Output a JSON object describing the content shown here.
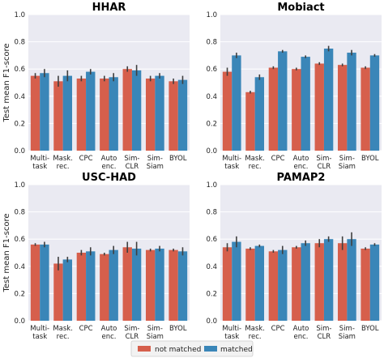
{
  "figure": {
    "ylabel": "Test mean F1-score",
    "colors": {
      "not_matched": "#d65f4c",
      "matched": "#3a86b8",
      "panel_bg": "#eaeaf2",
      "grid": "#ffffff",
      "error": "#3f3f3f"
    },
    "legend": {
      "entries": [
        "not matched",
        "matched"
      ],
      "placement": "bottom-center"
    }
  },
  "chart_data": [
    {
      "type": "bar",
      "title": "HHAR",
      "categories": [
        "Multi-\ntask",
        "Mask.\nrec.",
        "CPC",
        "Auto\nenc.",
        "Sim-\nCLR",
        "Sim-\nSiam",
        "BYOL"
      ],
      "series": [
        {
          "name": "not matched",
          "values": [
            0.55,
            0.51,
            0.53,
            0.53,
            0.6,
            0.53,
            0.51
          ],
          "errors": [
            0.02,
            0.04,
            0.02,
            0.02,
            0.02,
            0.02,
            0.02
          ]
        },
        {
          "name": "matched",
          "values": [
            0.57,
            0.55,
            0.58,
            0.54,
            0.59,
            0.55,
            0.52
          ],
          "errors": [
            0.03,
            0.04,
            0.02,
            0.03,
            0.04,
            0.02,
            0.03
          ]
        }
      ],
      "ylim": [
        0,
        1.0
      ],
      "yticks": [
        0.0,
        0.2,
        0.4,
        0.6,
        0.8,
        1.0
      ],
      "grid": true
    },
    {
      "type": "bar",
      "title": "Mobiact",
      "categories": [
        "Multi-\ntask",
        "Mask.\nrec.",
        "CPC",
        "Auto\nenc.",
        "Sim-\nCLR",
        "Sim-\nSiam",
        "BYOL"
      ],
      "series": [
        {
          "name": "not matched",
          "values": [
            0.58,
            0.43,
            0.61,
            0.6,
            0.64,
            0.63,
            0.61
          ],
          "errors": [
            0.03,
            0.01,
            0.01,
            0.01,
            0.01,
            0.01,
            0.01
          ]
        },
        {
          "name": "matched",
          "values": [
            0.7,
            0.54,
            0.73,
            0.69,
            0.75,
            0.72,
            0.7
          ],
          "errors": [
            0.02,
            0.02,
            0.01,
            0.01,
            0.02,
            0.02,
            0.01
          ]
        }
      ],
      "ylim": [
        0,
        1.0
      ],
      "yticks": [
        0.0,
        0.2,
        0.4,
        0.6,
        0.8,
        1.0
      ],
      "grid": true
    },
    {
      "type": "bar",
      "title": "USC-HAD",
      "categories": [
        "Multi-\ntask",
        "Mask.\nrec.",
        "CPC",
        "Auto\nenc.",
        "Sim-\nCLR",
        "Sim-\nSiam",
        "BYOL"
      ],
      "series": [
        {
          "name": "not matched",
          "values": [
            0.56,
            0.42,
            0.5,
            0.49,
            0.54,
            0.52,
            0.52
          ],
          "errors": [
            0.01,
            0.05,
            0.02,
            0.01,
            0.04,
            0.01,
            0.01
          ]
        },
        {
          "name": "matched",
          "values": [
            0.56,
            0.45,
            0.51,
            0.52,
            0.53,
            0.53,
            0.51
          ],
          "errors": [
            0.02,
            0.02,
            0.03,
            0.03,
            0.05,
            0.02,
            0.03
          ]
        }
      ],
      "ylim": [
        0,
        1.0
      ],
      "yticks": [
        0.0,
        0.2,
        0.4,
        0.6,
        0.8,
        1.0
      ],
      "grid": true
    },
    {
      "type": "bar",
      "title": "PAMAP2",
      "categories": [
        "Multi-\ntask",
        "Mask.\nrec.",
        "CPC",
        "Auto\nenc.",
        "Sim-\nCLR",
        "Sim-\nSiam",
        "BYOL"
      ],
      "series": [
        {
          "name": "not matched",
          "values": [
            0.54,
            0.53,
            0.51,
            0.54,
            0.57,
            0.57,
            0.53
          ],
          "errors": [
            0.03,
            0.01,
            0.01,
            0.01,
            0.03,
            0.05,
            0.01
          ]
        },
        {
          "name": "matched",
          "values": [
            0.58,
            0.55,
            0.52,
            0.57,
            0.6,
            0.6,
            0.56
          ],
          "errors": [
            0.04,
            0.01,
            0.03,
            0.02,
            0.02,
            0.05,
            0.01
          ]
        }
      ],
      "ylim": [
        0,
        1.0
      ],
      "yticks": [
        0.0,
        0.2,
        0.4,
        0.6,
        0.8,
        1.0
      ],
      "grid": true
    }
  ]
}
